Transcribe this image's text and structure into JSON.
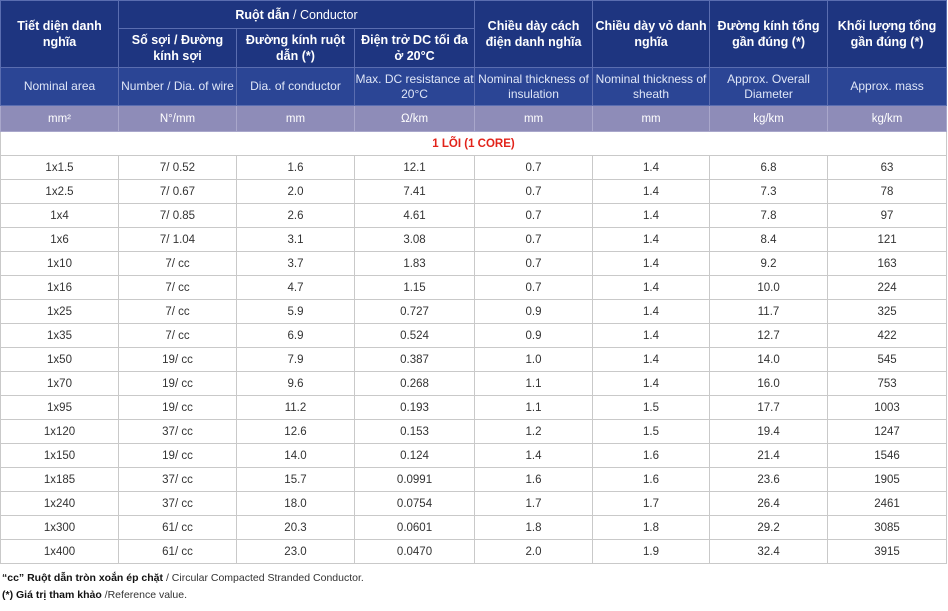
{
  "header": {
    "nominal_area_vi": "Tiết diện danh nghĩa",
    "conductor_group_vi": "Ruột dẫn",
    "conductor_group_en": " / Conductor",
    "number_vi": "Số sợi / Đường kính sợi",
    "dia_vi": "Đường kính ruột dẫn (*)",
    "resistance_vi": "Điện trở DC tối đa ở 20°C",
    "insulation_vi": "Chiều dày cách điện danh nghĩa",
    "sheath_vi": "Chiều dày vỏ danh nghĩa",
    "diameter_vi": "Đường kính tổng gần đúng (*)",
    "mass_vi": "Khối lượng tổng gần đúng (*)"
  },
  "header_en": [
    "Nominal area",
    "Number / Dia. of wire",
    "Dia. of conductor",
    "Max. DC resistance at 20°C",
    "Nominal thickness of insulation",
    "Nominal thickness of sheath",
    "Approx. Overall Diameter",
    "Approx. mass"
  ],
  "units": [
    "mm²",
    "N°/mm",
    "mm",
    "Ω/km",
    "mm",
    "mm",
    "kg/km",
    "kg/km"
  ],
  "section_title": "1 LÕI (1 CORE)",
  "rows": [
    [
      "1x1.5",
      "7/ 0.52",
      "1.6",
      "12.1",
      "0.7",
      "1.4",
      "6.8",
      "63"
    ],
    [
      "1x2.5",
      "7/ 0.67",
      "2.0",
      "7.41",
      "0.7",
      "1.4",
      "7.3",
      "78"
    ],
    [
      "1x4",
      "7/ 0.85",
      "2.6",
      "4.61",
      "0.7",
      "1.4",
      "7.8",
      "97"
    ],
    [
      "1x6",
      "7/ 1.04",
      "3.1",
      "3.08",
      "0.7",
      "1.4",
      "8.4",
      "121"
    ],
    [
      "1x10",
      "7/ cc",
      "3.7",
      "1.83",
      "0.7",
      "1.4",
      "9.2",
      "163"
    ],
    [
      "1x16",
      "7/ cc",
      "4.7",
      "1.15",
      "0.7",
      "1.4",
      "10.0",
      "224"
    ],
    [
      "1x25",
      "7/ cc",
      "5.9",
      "0.727",
      "0.9",
      "1.4",
      "11.7",
      "325"
    ],
    [
      "1x35",
      "7/ cc",
      "6.9",
      "0.524",
      "0.9",
      "1.4",
      "12.7",
      "422"
    ],
    [
      "1x50",
      "19/ cc",
      "7.9",
      "0.387",
      "1.0",
      "1.4",
      "14.0",
      "545"
    ],
    [
      "1x70",
      "19/ cc",
      "9.6",
      "0.268",
      "1.1",
      "1.4",
      "16.0",
      "753"
    ],
    [
      "1x95",
      "19/ cc",
      "11.2",
      "0.193",
      "1.1",
      "1.5",
      "17.7",
      "1003"
    ],
    [
      "1x120",
      "37/ cc",
      "12.6",
      "0.153",
      "1.2",
      "1.5",
      "19.4",
      "1247"
    ],
    [
      "1x150",
      "19/ cc",
      "14.0",
      "0.124",
      "1.4",
      "1.6",
      "21.4",
      "1546"
    ],
    [
      "1x185",
      "37/ cc",
      "15.7",
      "0.0991",
      "1.6",
      "1.6",
      "23.6",
      "1905"
    ],
    [
      "1x240",
      "37/ cc",
      "18.0",
      "0.0754",
      "1.7",
      "1.7",
      "26.4",
      "2461"
    ],
    [
      "1x300",
      "61/ cc",
      "20.3",
      "0.0601",
      "1.8",
      "1.8",
      "29.2",
      "3085"
    ],
    [
      "1x400",
      "61/ cc",
      "23.0",
      "0.0470",
      "2.0",
      "1.9",
      "32.4",
      "3915"
    ]
  ],
  "notes": [
    {
      "bold": "“cc” Ruột dẫn tròn xoắn ép chặt",
      "text": " / Circular Compacted Stranded Conductor."
    },
    {
      "bold": "(*) Giá trị tham khảo",
      "text": " /Reference value."
    }
  ]
}
